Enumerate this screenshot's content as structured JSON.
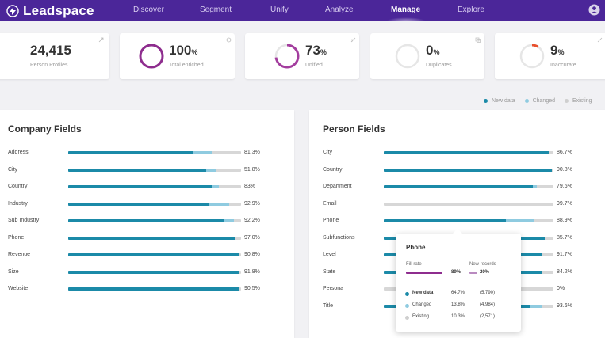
{
  "app": {
    "logo": "Leadspace",
    "accent": "#4b2699"
  },
  "nav": {
    "items": [
      "Discover",
      "Segment",
      "Unify",
      "Analyze",
      "Manage",
      "Explore"
    ],
    "active": "Manage"
  },
  "stats": [
    {
      "value": "24,415",
      "pct": "",
      "label": "Person Profiles",
      "fill": null,
      "color": null
    },
    {
      "value": "100",
      "pct": "%",
      "label": "Total enriched",
      "fill": 1.0,
      "color": "#8e2d8e"
    },
    {
      "value": "73",
      "pct": "%",
      "label": "Unified",
      "fill": 0.73,
      "color": "#a33d9e"
    },
    {
      "value": "0",
      "pct": "%",
      "label": "Duplicates",
      "fill": 0.0,
      "color": "#e04e2c"
    },
    {
      "value": "9",
      "pct": "%",
      "label": "Inaccurate",
      "fill": 0.09,
      "color": "#e8502e"
    }
  ],
  "legend": [
    {
      "label": "New data",
      "color": "#1b8aa8"
    },
    {
      "label": "Changed",
      "color": "#8fcbe0"
    },
    {
      "label": "Existing",
      "color": "#cfcfcf"
    }
  ],
  "company_panel": {
    "title": "Company Fields",
    "fields": [
      {
        "label": "Address",
        "value": "81.3%",
        "new": 0.72,
        "changed": 0.11
      },
      {
        "label": "City",
        "value": "51.8%",
        "new": 0.8,
        "changed": 0.06
      },
      {
        "label": "Country",
        "value": "83%",
        "new": 0.83,
        "changed": 0.04
      },
      {
        "label": "Industry",
        "value": "92.9%",
        "new": 0.81,
        "changed": 0.12
      },
      {
        "label": "Sub Industry",
        "value": "92.2%",
        "new": 0.9,
        "changed": 0.06
      },
      {
        "label": "Phone",
        "value": "97.0%",
        "new": 0.97,
        "changed": 0.0
      },
      {
        "label": "Revenue",
        "value": "90.8%",
        "new": 0.99,
        "changed": 0.0
      },
      {
        "label": "Size",
        "value": "91.8%",
        "new": 0.99,
        "changed": 0.0
      },
      {
        "label": "Website",
        "value": "90.5%",
        "new": 0.99,
        "changed": 0.0
      }
    ]
  },
  "person_panel": {
    "title": "Person Fields",
    "fields": [
      {
        "label": "City",
        "value": "86.7%",
        "new": 0.97,
        "changed": 0.0
      },
      {
        "label": "Country",
        "value": "90.8%",
        "new": 0.99,
        "changed": 0.0
      },
      {
        "label": "Department",
        "value": "79.6%",
        "new": 0.88,
        "changed": 0.02
      },
      {
        "label": "Email",
        "value": "99.7%",
        "new": 0.0,
        "changed": 0.0
      },
      {
        "label": "Phone",
        "value": "88.9%",
        "new": 0.72,
        "changed": 0.17
      },
      {
        "label": "Subfunctions",
        "value": "85.7%",
        "new": 0.95,
        "changed": 0.0
      },
      {
        "label": "Level",
        "value": "91.7%",
        "new": 0.93,
        "changed": 0.0
      },
      {
        "label": "State",
        "value": "84.2%",
        "new": 0.93,
        "changed": 0.0
      },
      {
        "label": "Persona",
        "value": "0%",
        "new": 0.0,
        "changed": 0.0
      },
      {
        "label": "Title",
        "value": "93.6%",
        "new": 0.86,
        "changed": 0.07
      }
    ]
  },
  "tooltip": {
    "title": "Phone",
    "left_label": "Fill rate",
    "left_value": "89%",
    "left_fill": 0.89,
    "right_label": "New records",
    "right_value": "20%",
    "right_fill": 0.2,
    "rows": [
      {
        "name": "New data",
        "pct": "64.7%",
        "count": "(5,790)",
        "color": "#1b8aa8"
      },
      {
        "name": "Changed",
        "pct": "13.8%",
        "count": "(4,984)",
        "color": "#8fcbe0"
      },
      {
        "name": "Existing",
        "pct": "10.3%",
        "count": "(2,571)",
        "color": "#cfcfcf"
      }
    ]
  }
}
